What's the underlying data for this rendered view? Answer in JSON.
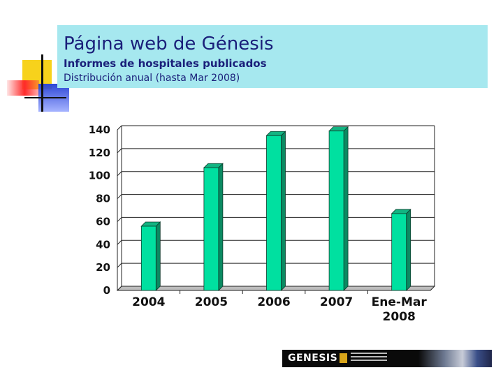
{
  "header": {
    "title": "Página web de Génesis",
    "subtitle": "Informes de hospitales publicados",
    "subtitle2": "Distribución anual (hasta Mar 2008)"
  },
  "chart_data": {
    "type": "bar",
    "categories": [
      [
        "2004"
      ],
      [
        "2005"
      ],
      [
        "2006"
      ],
      [
        "2007"
      ],
      [
        "Ene-Mar",
        "2008"
      ]
    ],
    "values": [
      56,
      107,
      135,
      139,
      67
    ],
    "ylim": [
      0,
      140
    ],
    "yticks": [
      0,
      20,
      40,
      60,
      80,
      100,
      120,
      140
    ],
    "grid": true,
    "bar_color": "#00e0a0",
    "bar_side_color": "#0b8a62",
    "bar_top_color": "#12b482"
  },
  "footer": {
    "logo_text": "GENESIS"
  }
}
